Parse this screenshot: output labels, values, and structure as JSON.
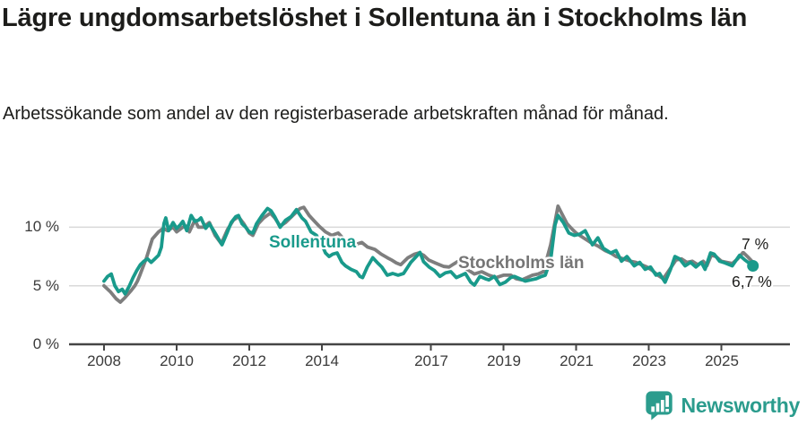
{
  "header": {
    "title": "Lägre ungdomsarbetslöshet i Sollentuna än i Stockholms län",
    "subtitle": "Arbetssökande som andel av den registerbaserade arbetskraften månad för månad."
  },
  "footer": {
    "brand": "Newsworthy",
    "logo_icon": "speech-bubble-bar-chart-icon"
  },
  "colors": {
    "accent_teal": "#199a8b",
    "series_gray": "#7e7e7e",
    "label_gray": "#757575",
    "text_dark": "#1d1d1b",
    "axis": "#454545",
    "tick_label": "#3b3b3b",
    "gridline": "#d9d9d9",
    "background": "#ffffff"
  },
  "chart_data": {
    "type": "line",
    "title": "Lägre ungdomsarbetslöshet i Sollentuna än i Stockholms län",
    "subtitle": "Arbetssökande som andel av den registerbaserade arbetskraften månad för månad.",
    "xlabel": "",
    "ylabel": "",
    "xlim": [
      2007.9,
      2026.9
    ],
    "ylim": [
      0,
      13
    ],
    "grid": "horizontal",
    "legend_position": "inline-labels",
    "x_ticks": [
      {
        "year": 2008,
        "label": "2008"
      },
      {
        "year": 2010,
        "label": "2010"
      },
      {
        "year": 2012,
        "label": "2012"
      },
      {
        "year": 2014,
        "label": "2014"
      },
      {
        "year": 2017,
        "label": "2017"
      },
      {
        "year": 2019,
        "label": "2019"
      },
      {
        "year": 2021,
        "label": "2021"
      },
      {
        "year": 2023,
        "label": "2023"
      },
      {
        "year": 2025,
        "label": "2025"
      }
    ],
    "y_ticks": [
      {
        "value": 0,
        "label": "0 %"
      },
      {
        "value": 5,
        "label": "5 %"
      },
      {
        "value": 10,
        "label": "10 %"
      }
    ],
    "series": [
      {
        "name": "Sollentuna",
        "label": "Sollentuna",
        "color": "#199a8b",
        "end_label": "6,7 %",
        "end_value": 6.7,
        "dot_on_last": true,
        "points": [
          [
            2008.0,
            5.4
          ],
          [
            2008.1,
            5.8
          ],
          [
            2008.2,
            6.0
          ],
          [
            2008.3,
            5.0
          ],
          [
            2008.4,
            4.5
          ],
          [
            2008.5,
            4.7
          ],
          [
            2008.58,
            4.3
          ],
          [
            2008.7,
            5.0
          ],
          [
            2008.8,
            5.7
          ],
          [
            2008.9,
            6.3
          ],
          [
            2009.0,
            6.8
          ],
          [
            2009.1,
            7.1
          ],
          [
            2009.2,
            7.3
          ],
          [
            2009.3,
            7.0
          ],
          [
            2009.4,
            7.3
          ],
          [
            2009.5,
            7.6
          ],
          [
            2009.58,
            8.3
          ],
          [
            2009.65,
            10.3
          ],
          [
            2009.7,
            10.8
          ],
          [
            2009.78,
            9.7
          ],
          [
            2009.9,
            10.4
          ],
          [
            2010.0,
            9.9
          ],
          [
            2010.1,
            10.2
          ],
          [
            2010.17,
            10.5
          ],
          [
            2010.28,
            9.7
          ],
          [
            2010.4,
            11.0
          ],
          [
            2010.5,
            10.5
          ],
          [
            2010.6,
            10.6
          ],
          [
            2010.67,
            10.8
          ],
          [
            2010.8,
            9.9
          ],
          [
            2010.9,
            10.3
          ],
          [
            2011.06,
            9.5
          ],
          [
            2011.25,
            8.5
          ],
          [
            2011.4,
            9.6
          ],
          [
            2011.5,
            10.4
          ],
          [
            2011.63,
            10.9
          ],
          [
            2011.7,
            11.0
          ],
          [
            2011.8,
            10.3
          ],
          [
            2011.9,
            10.0
          ],
          [
            2012.0,
            9.6
          ],
          [
            2012.1,
            9.5
          ],
          [
            2012.2,
            10.3
          ],
          [
            2012.35,
            11.0
          ],
          [
            2012.5,
            11.6
          ],
          [
            2012.6,
            11.4
          ],
          [
            2012.7,
            10.9
          ],
          [
            2012.85,
            10.0
          ],
          [
            2013.0,
            10.6
          ],
          [
            2013.15,
            10.9
          ],
          [
            2013.3,
            11.5
          ],
          [
            2013.45,
            10.8
          ],
          [
            2013.55,
            10.5
          ],
          [
            2013.7,
            9.6
          ],
          [
            2013.85,
            9.3
          ],
          [
            2014.0,
            8.5
          ],
          [
            2014.1,
            7.8
          ],
          [
            2014.2,
            7.5
          ],
          [
            2014.3,
            7.7
          ],
          [
            2014.42,
            7.8
          ],
          [
            2014.55,
            7.0
          ],
          [
            2014.65,
            6.7
          ],
          [
            2014.8,
            6.4
          ],
          [
            2014.95,
            6.2
          ],
          [
            2015.05,
            5.8
          ],
          [
            2015.12,
            5.7
          ],
          [
            2015.25,
            6.6
          ],
          [
            2015.4,
            7.4
          ],
          [
            2015.55,
            6.9
          ],
          [
            2015.65,
            6.6
          ],
          [
            2015.8,
            5.9
          ],
          [
            2015.95,
            6.05
          ],
          [
            2016.1,
            5.9
          ],
          [
            2016.25,
            6.05
          ],
          [
            2016.45,
            7.0
          ],
          [
            2016.6,
            7.5
          ],
          [
            2016.7,
            7.85
          ],
          [
            2016.8,
            7.05
          ],
          [
            2016.95,
            6.6
          ],
          [
            2017.1,
            6.3
          ],
          [
            2017.25,
            5.8
          ],
          [
            2017.4,
            6.1
          ],
          [
            2017.55,
            6.2
          ],
          [
            2017.7,
            5.7
          ],
          [
            2017.85,
            5.9
          ],
          [
            2017.95,
            6.05
          ],
          [
            2018.1,
            5.3
          ],
          [
            2018.2,
            5.05
          ],
          [
            2018.35,
            5.8
          ],
          [
            2018.5,
            5.6
          ],
          [
            2018.6,
            5.5
          ],
          [
            2018.75,
            5.8
          ],
          [
            2018.9,
            5.1
          ],
          [
            2019.05,
            5.3
          ],
          [
            2019.2,
            5.7
          ],
          [
            2019.3,
            5.8
          ],
          [
            2019.45,
            5.6
          ],
          [
            2019.6,
            5.4
          ],
          [
            2019.75,
            5.5
          ],
          [
            2019.9,
            5.6
          ],
          [
            2020.05,
            5.8
          ],
          [
            2020.15,
            5.9
          ],
          [
            2020.3,
            7.2
          ],
          [
            2020.42,
            10.2
          ],
          [
            2020.5,
            11.0
          ],
          [
            2020.65,
            10.4
          ],
          [
            2020.8,
            9.5
          ],
          [
            2020.95,
            9.3
          ],
          [
            2021.1,
            9.4
          ],
          [
            2021.25,
            9.7
          ],
          [
            2021.45,
            8.5
          ],
          [
            2021.6,
            9.1
          ],
          [
            2021.75,
            8.2
          ],
          [
            2021.95,
            7.8
          ],
          [
            2022.1,
            8.0
          ],
          [
            2022.25,
            7.1
          ],
          [
            2022.4,
            7.5
          ],
          [
            2022.6,
            6.7
          ],
          [
            2022.75,
            7.0
          ],
          [
            2022.9,
            6.4
          ],
          [
            2023.05,
            6.6
          ],
          [
            2023.2,
            5.9
          ],
          [
            2023.3,
            6.05
          ],
          [
            2023.45,
            5.3
          ],
          [
            2023.6,
            6.4
          ],
          [
            2023.72,
            7.5
          ],
          [
            2023.85,
            7.3
          ],
          [
            2024.0,
            6.7
          ],
          [
            2024.15,
            7.0
          ],
          [
            2024.3,
            6.6
          ],
          [
            2024.45,
            7.0
          ],
          [
            2024.55,
            6.4
          ],
          [
            2024.7,
            7.8
          ],
          [
            2024.8,
            7.7
          ],
          [
            2024.95,
            7.1
          ],
          [
            2025.1,
            6.95
          ],
          [
            2025.3,
            6.7
          ],
          [
            2025.5,
            7.6
          ],
          [
            2025.65,
            7.2
          ],
          [
            2025.87,
            6.7
          ]
        ]
      },
      {
        "name": "Stockholms län",
        "label": "Stockholms län",
        "color": "#7e7e7e",
        "end_label": "7 %",
        "end_value": 7.0,
        "dot_on_last": false,
        "points": [
          [
            2008.0,
            5.0
          ],
          [
            2008.17,
            4.5
          ],
          [
            2008.33,
            3.9
          ],
          [
            2008.45,
            3.6
          ],
          [
            2008.58,
            4.0
          ],
          [
            2008.75,
            4.6
          ],
          [
            2008.85,
            5.0
          ],
          [
            2008.92,
            5.4
          ],
          [
            2009.0,
            6.0
          ],
          [
            2009.17,
            7.4
          ],
          [
            2009.33,
            9.0
          ],
          [
            2009.5,
            9.6
          ],
          [
            2009.63,
            9.9
          ],
          [
            2009.75,
            9.7
          ],
          [
            2009.9,
            10.0
          ],
          [
            2010.0,
            9.6
          ],
          [
            2010.17,
            10.0
          ],
          [
            2010.25,
            10.1
          ],
          [
            2010.35,
            9.6
          ],
          [
            2010.5,
            10.6
          ],
          [
            2010.6,
            10.0
          ],
          [
            2010.73,
            10.0
          ],
          [
            2010.9,
            10.4
          ],
          [
            2011.06,
            9.3
          ],
          [
            2011.23,
            8.6
          ],
          [
            2011.4,
            9.8
          ],
          [
            2011.56,
            10.6
          ],
          [
            2011.7,
            10.9
          ],
          [
            2011.85,
            10.3
          ],
          [
            2012.0,
            9.5
          ],
          [
            2012.1,
            9.3
          ],
          [
            2012.25,
            10.3
          ],
          [
            2012.4,
            10.8
          ],
          [
            2012.58,
            11.2
          ],
          [
            2012.7,
            10.8
          ],
          [
            2012.85,
            10.1
          ],
          [
            2013.0,
            10.4
          ],
          [
            2013.2,
            11.0
          ],
          [
            2013.4,
            11.6
          ],
          [
            2013.5,
            11.7
          ],
          [
            2013.65,
            11.0
          ],
          [
            2013.8,
            10.5
          ],
          [
            2013.92,
            10.1
          ],
          [
            2014.1,
            9.6
          ],
          [
            2014.27,
            9.3
          ],
          [
            2014.45,
            9.5
          ],
          [
            2014.6,
            9.0
          ],
          [
            2014.84,
            8.5
          ],
          [
            2015.0,
            8.6
          ],
          [
            2015.1,
            8.7
          ],
          [
            2015.26,
            8.3
          ],
          [
            2015.46,
            8.1
          ],
          [
            2015.63,
            7.7
          ],
          [
            2015.8,
            7.4
          ],
          [
            2015.92,
            7.2
          ],
          [
            2016.05,
            6.95
          ],
          [
            2016.17,
            6.8
          ],
          [
            2016.37,
            7.4
          ],
          [
            2016.55,
            7.7
          ],
          [
            2016.67,
            7.8
          ],
          [
            2016.8,
            7.6
          ],
          [
            2016.94,
            7.2
          ],
          [
            2017.12,
            6.95
          ],
          [
            2017.24,
            6.8
          ],
          [
            2017.36,
            6.65
          ],
          [
            2017.5,
            6.6
          ],
          [
            2017.6,
            6.8
          ],
          [
            2017.73,
            7.05
          ],
          [
            2017.85,
            6.95
          ],
          [
            2018.0,
            6.4
          ],
          [
            2018.2,
            6.0
          ],
          [
            2018.4,
            6.2
          ],
          [
            2018.6,
            5.9
          ],
          [
            2018.8,
            5.7
          ],
          [
            2019.0,
            5.9
          ],
          [
            2019.2,
            5.9
          ],
          [
            2019.35,
            5.6
          ],
          [
            2019.5,
            5.5
          ],
          [
            2019.65,
            5.7
          ],
          [
            2019.8,
            5.9
          ],
          [
            2019.95,
            6.0
          ],
          [
            2020.1,
            6.2
          ],
          [
            2020.3,
            8.5
          ],
          [
            2020.5,
            11.8
          ],
          [
            2020.6,
            11.2
          ],
          [
            2020.75,
            10.3
          ],
          [
            2020.9,
            9.8
          ],
          [
            2021.0,
            9.5
          ],
          [
            2021.2,
            9.1
          ],
          [
            2021.4,
            8.7
          ],
          [
            2021.6,
            8.4
          ],
          [
            2021.8,
            8.0
          ],
          [
            2021.95,
            7.8
          ],
          [
            2022.1,
            7.5
          ],
          [
            2022.3,
            7.3
          ],
          [
            2022.5,
            7.1
          ],
          [
            2022.65,
            7.0
          ],
          [
            2022.8,
            6.8
          ],
          [
            2022.95,
            6.6
          ],
          [
            2023.1,
            6.3
          ],
          [
            2023.25,
            5.9
          ],
          [
            2023.4,
            5.6
          ],
          [
            2023.6,
            6.5
          ],
          [
            2023.75,
            7.2
          ],
          [
            2023.9,
            7.3
          ],
          [
            2024.05,
            7.0
          ],
          [
            2024.2,
            7.1
          ],
          [
            2024.35,
            6.8
          ],
          [
            2024.5,
            7.1
          ],
          [
            2024.6,
            6.7
          ],
          [
            2024.72,
            7.6
          ],
          [
            2024.85,
            7.5
          ],
          [
            2025.0,
            7.1
          ],
          [
            2025.15,
            7.0
          ],
          [
            2025.3,
            6.9
          ],
          [
            2025.45,
            7.3
          ],
          [
            2025.6,
            7.85
          ],
          [
            2025.75,
            7.4
          ],
          [
            2025.87,
            7.0
          ]
        ]
      }
    ]
  }
}
